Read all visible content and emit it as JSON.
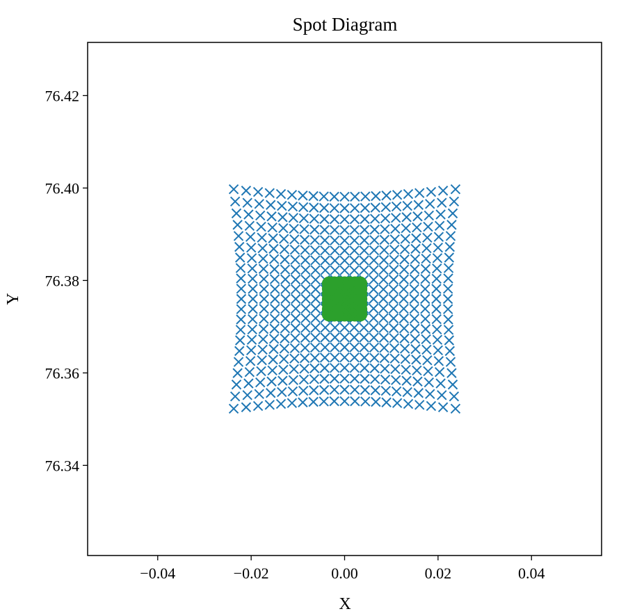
{
  "chart_data": {
    "type": "scatter",
    "title": "Spot Diagram",
    "xlabel": "X",
    "ylabel": "Y",
    "xlim": [
      -0.055,
      0.055
    ],
    "ylim": [
      76.3205,
      76.4315
    ],
    "xticks": [
      -0.04,
      -0.02,
      0.0,
      0.02,
      0.04
    ],
    "xtick_labels": [
      "−0.04",
      "−0.02",
      "0.00",
      "0.02",
      "0.04"
    ],
    "yticks": [
      76.34,
      76.36,
      76.38,
      76.4,
      76.42
    ],
    "ytick_labels": [
      "76.34",
      "76.36",
      "76.38",
      "76.40",
      "76.42"
    ],
    "grid": false,
    "legend": "none",
    "center": [
      0.0,
      76.376
    ],
    "series": [
      {
        "marker": "x",
        "color": "#1f77b4",
        "grid_n": 10,
        "step": 0.00205,
        "distortion": 0.075,
        "y_scale": 1.0
      },
      {
        "marker": "x",
        "color": "#ff7f0e",
        "grid_n": 2,
        "step": 0.0016,
        "distortion": 0.0,
        "y_scale": 1.0
      },
      {
        "marker": "circle",
        "color": "#2ca02c",
        "grid_n": 3,
        "step": 0.0011,
        "distortion": 0.0,
        "y_scale": 1.0
      }
    ]
  }
}
